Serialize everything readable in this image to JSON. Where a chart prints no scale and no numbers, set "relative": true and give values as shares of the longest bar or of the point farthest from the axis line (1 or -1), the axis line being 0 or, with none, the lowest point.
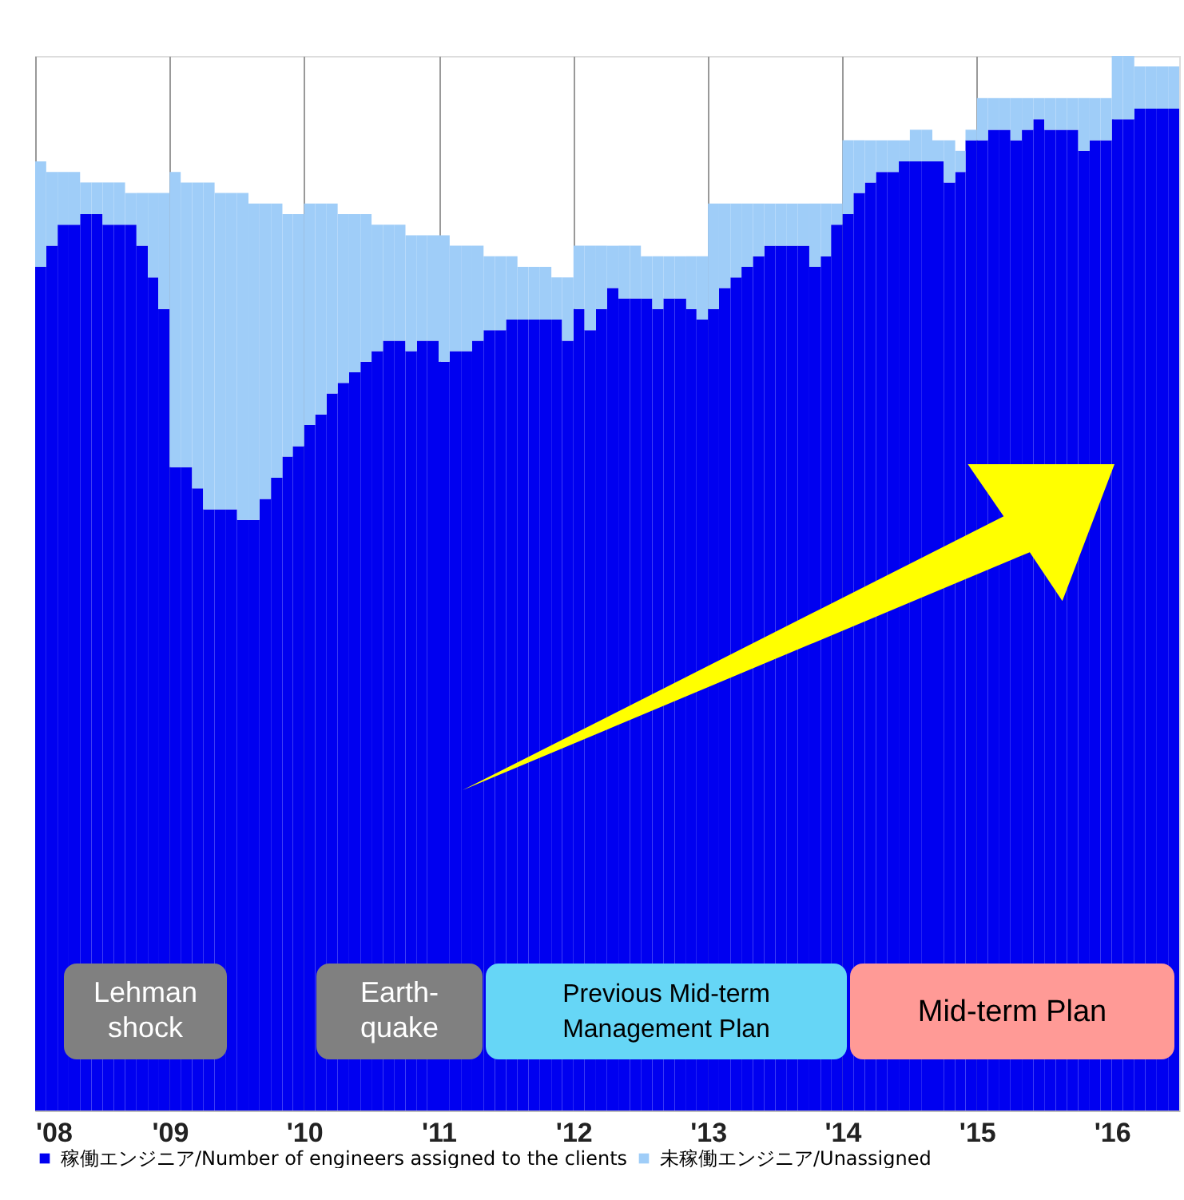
{
  "chart_data": {
    "type": "bar",
    "stacked": true,
    "relative": true,
    "legend": "bottom",
    "grid": "x",
    "x": [
      "2008-04",
      "2008-05",
      "2008-06",
      "2008-07",
      "2008-08",
      "2008-09",
      "2008-10",
      "2008-11",
      "2008-12",
      "2009-01",
      "2009-02",
      "2009-03",
      "2009-04",
      "2009-05",
      "2009-06",
      "2009-07",
      "2009-08",
      "2009-09",
      "2009-10",
      "2009-11",
      "2009-12",
      "2010-01",
      "2010-02",
      "2010-03",
      "2010-04",
      "2010-05",
      "2010-06",
      "2010-07",
      "2010-08",
      "2010-09",
      "2010-10",
      "2010-11",
      "2010-12",
      "2011-01",
      "2011-02",
      "2011-03",
      "2011-04",
      "2011-05",
      "2011-06",
      "2011-07",
      "2011-08",
      "2011-09",
      "2011-10",
      "2011-11",
      "2011-12",
      "2012-01",
      "2012-02",
      "2012-03",
      "2012-04",
      "2012-05",
      "2012-06",
      "2012-07",
      "2012-08",
      "2012-09",
      "2012-10",
      "2012-11",
      "2012-12",
      "2013-01",
      "2013-02",
      "2013-03",
      "2013-04",
      "2013-05",
      "2013-06",
      "2013-07",
      "2013-08",
      "2013-09",
      "2013-10",
      "2013-11",
      "2013-12",
      "2014-01",
      "2014-02",
      "2014-03",
      "2014-04",
      "2014-05",
      "2014-06",
      "2014-07",
      "2014-08",
      "2014-09",
      "2014-10",
      "2014-11",
      "2014-12",
      "2015-01",
      "2015-02",
      "2015-03",
      "2015-04",
      "2015-05",
      "2015-06",
      "2015-07",
      "2015-08",
      "2015-09",
      "2015-10",
      "2015-11",
      "2015-12",
      "2016-01",
      "2016-02",
      "2016-03",
      "2016-04",
      "2016-05",
      "2016-06",
      "2016-07",
      "2016-08",
      "2016-09"
    ],
    "xlim": [
      "2008-04",
      "2016-10"
    ],
    "xticks": [
      {
        "value": "2008-04",
        "label": "'08"
      },
      {
        "value": "2009-04",
        "label": "'09"
      },
      {
        "value": "2010-04",
        "label": "'10"
      },
      {
        "value": "2011-04",
        "label": "'11"
      },
      {
        "value": "2012-04",
        "label": "'12"
      },
      {
        "value": "2013-04",
        "label": "'13"
      },
      {
        "value": "2014-04",
        "label": "'14"
      },
      {
        "value": "2015-04",
        "label": "'15"
      },
      {
        "value": "2016-04",
        "label": "'16"
      }
    ],
    "series": [
      {
        "name": "稼働エンジニア/Number of engineers assigned to the clients",
        "color": "#0000f0",
        "values": [
          0.8,
          0.82,
          0.84,
          0.84,
          0.85,
          0.85,
          0.84,
          0.84,
          0.84,
          0.82,
          0.79,
          0.76,
          0.61,
          0.61,
          0.59,
          0.57,
          0.57,
          0.57,
          0.56,
          0.56,
          0.58,
          0.6,
          0.62,
          0.63,
          0.65,
          0.66,
          0.68,
          0.69,
          0.7,
          0.71,
          0.72,
          0.73,
          0.73,
          0.72,
          0.73,
          0.73,
          0.71,
          0.72,
          0.72,
          0.73,
          0.74,
          0.74,
          0.75,
          0.75,
          0.75,
          0.75,
          0.75,
          0.73,
          0.76,
          0.74,
          0.76,
          0.78,
          0.77,
          0.77,
          0.77,
          0.76,
          0.77,
          0.77,
          0.76,
          0.75,
          0.76,
          0.78,
          0.79,
          0.8,
          0.81,
          0.82,
          0.82,
          0.82,
          0.82,
          0.8,
          0.81,
          0.84,
          0.85,
          0.87,
          0.88,
          0.89,
          0.89,
          0.9,
          0.9,
          0.9,
          0.9,
          0.88,
          0.89,
          0.92,
          0.92,
          0.93,
          0.93,
          0.92,
          0.93,
          0.94,
          0.93,
          0.93,
          0.93,
          0.91,
          0.92,
          0.92,
          0.94,
          0.94,
          0.95,
          0.95,
          0.95,
          0.95
        ]
      },
      {
        "name": "未稼働エンジニア/Unassigned",
        "color": "#9fcdf8",
        "values": [
          0.1,
          0.07,
          0.05,
          0.05,
          0.03,
          0.03,
          0.04,
          0.04,
          0.03,
          0.05,
          0.08,
          0.11,
          0.28,
          0.27,
          0.29,
          0.31,
          0.3,
          0.3,
          0.31,
          0.3,
          0.28,
          0.26,
          0.23,
          0.22,
          0.21,
          0.2,
          0.18,
          0.16,
          0.15,
          0.14,
          0.12,
          0.11,
          0.11,
          0.11,
          0.1,
          0.1,
          0.12,
          0.1,
          0.1,
          0.09,
          0.07,
          0.07,
          0.06,
          0.05,
          0.05,
          0.05,
          0.04,
          0.06,
          0.06,
          0.08,
          0.06,
          0.04,
          0.05,
          0.05,
          0.04,
          0.05,
          0.04,
          0.04,
          0.05,
          0.06,
          0.1,
          0.08,
          0.07,
          0.06,
          0.05,
          0.04,
          0.04,
          0.04,
          0.04,
          0.06,
          0.05,
          0.02,
          0.07,
          0.05,
          0.04,
          0.03,
          0.03,
          0.02,
          0.03,
          0.03,
          0.02,
          0.04,
          0.02,
          0.01,
          0.04,
          0.03,
          0.03,
          0.04,
          0.03,
          0.02,
          0.03,
          0.03,
          0.03,
          0.05,
          0.04,
          0.04,
          0.06,
          0.06,
          0.04,
          0.04,
          0.04,
          0.04
        ]
      }
    ],
    "annotations": [
      "Lehman\nshock",
      "Earth-\nquake",
      "Previous Mid-term\nManagement Plan",
      "Mid-term  Plan"
    ]
  }
}
